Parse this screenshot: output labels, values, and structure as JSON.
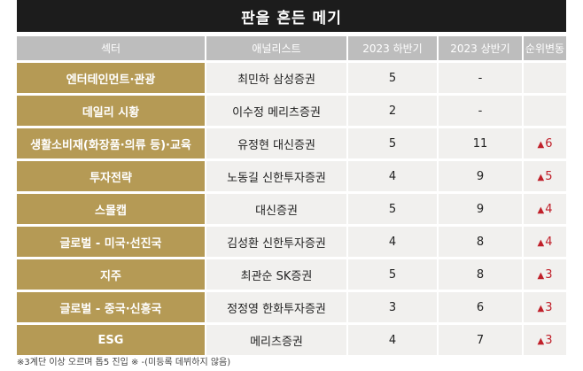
{
  "title": "판을 흔든 메기",
  "headers": [
    "섹터",
    "애널리스트",
    "2023 하반기",
    "2023 상반기",
    "순위변동"
  ],
  "rows": [
    {
      "sector": "엔터테인먼트·관광",
      "analyst": "최민하 삼성증권",
      "h2": "5",
      "h1": "-",
      "change": ""
    },
    {
      "sector": "데일리 시황",
      "analyst": "이수정 메리츠증권",
      "h2": "2",
      "h1": "-",
      "change": ""
    },
    {
      "sector": "생활소비재(화장품·의류 등)·교육",
      "analyst": "유정현 대신증권",
      "h2": "5",
      "h1": "11",
      "change": "6"
    },
    {
      "sector": "투자전략",
      "analyst": "노동길 신한투자증권",
      "h2": "4",
      "h1": "9",
      "change": "5"
    },
    {
      "sector": "스몰캡",
      "analyst": "대신증권",
      "h2": "5",
      "h1": "9",
      "change": "4"
    },
    {
      "sector": "글로벌 - 미국·선진국",
      "analyst": "김성환 신한투자증권",
      "h2": "4",
      "h1": "8",
      "change": "4"
    },
    {
      "sector": "지주",
      "analyst": "최관순 SK증권",
      "h2": "5",
      "h1": "8",
      "change": "3"
    },
    {
      "sector": "글로벌 - 중국·신흥국",
      "analyst": "정정영 한화투자증권",
      "h2": "3",
      "h1": "6",
      "change": "3"
    },
    {
      "sector": "ESG",
      "analyst": "메리츠증권",
      "h2": "4",
      "h1": "7",
      "change": "3"
    }
  ],
  "rank_up_symbol": "▲",
  "footnote": "※3계단 이상 오르며 톱5 진입 ※ -(미등록 데뷔하지 않음)",
  "colors": {
    "title_bg": "#1c1c1c",
    "header_bg": "#bdbdbd",
    "sector_bg": "#b59a55",
    "cell_bg": "#f1f0ee",
    "rank_up": "#c0202a"
  }
}
